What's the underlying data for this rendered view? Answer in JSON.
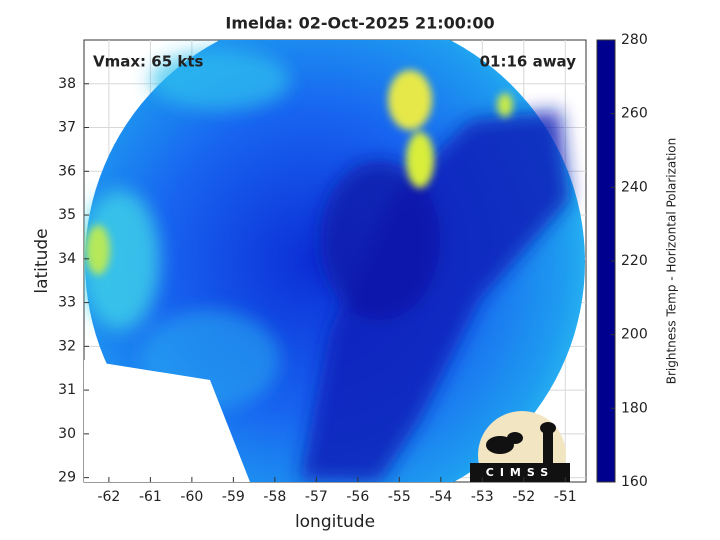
{
  "chart_data": {
    "type": "image",
    "title": "Imelda: 02-Oct-2025 21:00:00",
    "annotations": {
      "left": "Vmax: 65 kts",
      "right": "01:16 away"
    },
    "xlabel": "longitude",
    "ylabel": "latitude",
    "xlim": [
      -62.6,
      -50.5
    ],
    "xticks": [
      -62,
      -61,
      -60,
      -59,
      -58,
      -57,
      -56,
      -55,
      -54,
      -53,
      -52,
      -51
    ],
    "ylim": [
      28.9,
      39
    ],
    "yticks": [
      29,
      30,
      31,
      32,
      33,
      34,
      35,
      36,
      37,
      38
    ],
    "grid": true,
    "colorbar": {
      "label": "Brightness Temp - Horizontal Polarization",
      "clim": [
        160,
        280
      ],
      "ticks": [
        160,
        180,
        200,
        220,
        240,
        260,
        280
      ],
      "colormap": "jet"
    },
    "logo_text": "CIMSS"
  }
}
